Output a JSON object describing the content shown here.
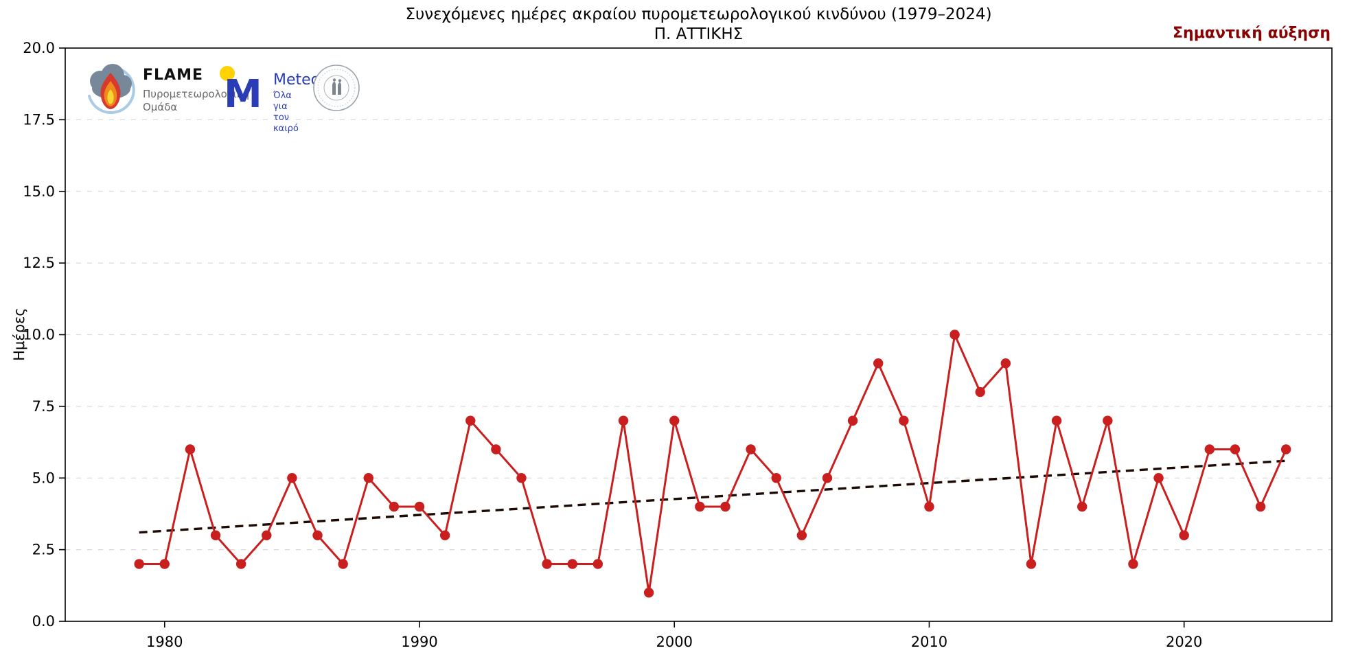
{
  "chart_data": {
    "type": "line",
    "title": "Συνεχόμενες ημέρες ακραίου πυρομετεωρολογικού κινδύνου (1979–2024)",
    "subtitle": "Π. ΑΤΤΙΚΗΣ",
    "annotation": "Σημαντική αύξηση",
    "xlabel": "",
    "ylabel": "Ημέρες",
    "ylim": [
      0,
      20
    ],
    "xlim": [
      1976.1,
      2025.8
    ],
    "grid": "horizontal-dashed",
    "legend": "none",
    "x": [
      1979,
      1980,
      1981,
      1982,
      1983,
      1984,
      1985,
      1986,
      1987,
      1988,
      1989,
      1990,
      1991,
      1992,
      1993,
      1994,
      1995,
      1996,
      1997,
      1998,
      1999,
      2000,
      2001,
      2002,
      2003,
      2004,
      2005,
      2006,
      2007,
      2008,
      2009,
      2010,
      2011,
      2012,
      2013,
      2014,
      2015,
      2016,
      2017,
      2018,
      2019,
      2020,
      2021,
      2022,
      2023,
      2024
    ],
    "values": [
      2,
      2,
      6,
      3,
      2,
      3,
      5,
      3,
      2,
      5,
      4,
      4,
      3,
      7,
      6,
      5,
      2,
      2,
      2,
      7,
      1,
      7,
      4,
      4,
      6,
      5,
      3,
      5,
      7,
      9,
      7,
      4,
      10,
      8,
      9,
      2,
      7,
      4,
      7,
      2,
      5,
      3,
      6,
      6,
      4,
      6
    ],
    "trend": {
      "style": "dashed",
      "x": [
        1979,
        2024
      ],
      "y": [
        3.1,
        5.6
      ]
    },
    "yticks": [
      "0.0",
      "2.5",
      "5.0",
      "7.5",
      "10.0",
      "12.5",
      "15.0",
      "17.5",
      "20.0"
    ],
    "xticks": [
      "1980",
      "1990",
      "2000",
      "2010",
      "2020"
    ],
    "colors": {
      "line": "#c91f1f",
      "marker": "#c91f1f",
      "trend": "#1c0a05",
      "annotation": "#8b0000",
      "grid": "#d9d9d9"
    }
  },
  "logos": {
    "flame": {
      "name": "FLAME",
      "sub_line1": "Πυρομετεωρολογική",
      "sub_line2": "Ομάδα"
    },
    "meteo": {
      "name": "Meteo",
      "tag_line1": "Όλα για",
      "tag_line2": "τον καιρό"
    }
  }
}
